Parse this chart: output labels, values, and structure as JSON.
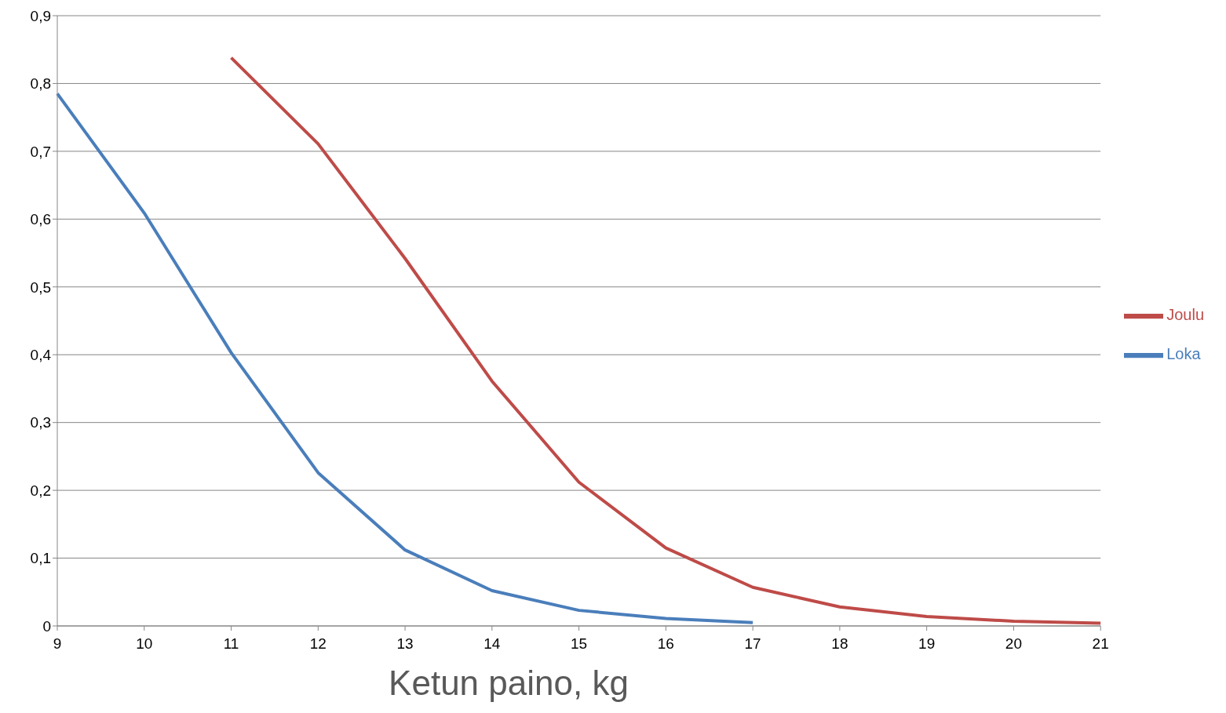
{
  "chart_data": {
    "type": "line",
    "xlabel": "Ketun paino, kg",
    "categories": [
      "9",
      "10",
      "11",
      "12",
      "13",
      "14",
      "15",
      "16",
      "17",
      "18",
      "19",
      "20",
      "21"
    ],
    "series": [
      {
        "name": "Loka",
        "color": "#4a7ebb",
        "values": [
          0.785,
          0.609,
          0.403,
          0.226,
          0.112,
          0.052,
          0.023,
          0.011,
          0.005,
          null,
          null,
          null,
          null
        ]
      },
      {
        "name": "Joulu",
        "color": "#be4b48",
        "values": [
          null,
          null,
          0.838,
          0.711,
          0.542,
          0.361,
          0.212,
          0.115,
          0.057,
          0.028,
          0.014,
          0.007,
          0.004
        ]
      }
    ],
    "ylim": [
      0,
      0.9
    ],
    "yticks": [
      {
        "value": 0,
        "label": "0"
      },
      {
        "value": 0.1,
        "label": "0,1"
      },
      {
        "value": 0.2,
        "label": "0,2"
      },
      {
        "value": 0.3,
        "label": "0,3"
      },
      {
        "value": 0.4,
        "label": "0,4"
      },
      {
        "value": 0.5,
        "label": "0,5"
      },
      {
        "value": 0.6,
        "label": "0,6"
      },
      {
        "value": 0.7,
        "label": "0,7"
      },
      {
        "value": 0.8,
        "label": "0,8"
      },
      {
        "value": 0.9,
        "label": "0,9"
      }
    ],
    "grid": "y",
    "legend": "right",
    "marker": "none",
    "line_style": "solid"
  }
}
